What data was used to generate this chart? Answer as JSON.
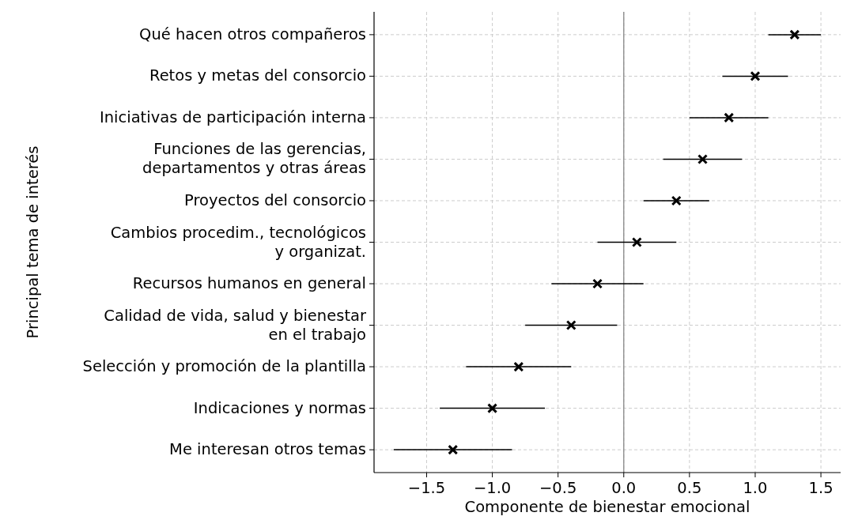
{
  "chart_data": {
    "type": "scatter",
    "orientation": "horizontal",
    "xlabel": "Componente de bienestar emocional",
    "ylabel": "Principal tema de interés",
    "categories": [
      "Qué hacen otros compañeros",
      "Retos y metas del consorcio",
      "Iniciativas de participación interna",
      "Funciones de las gerencias,\ndepartamentos y otras áreas",
      "Proyectos del consorcio",
      "Cambios procedim., tecnológicos\ny organizat.",
      "Recursos humanos en general",
      "Calidad de vida, salud y bienestar\nen el trabajo",
      "Selección y promoción de la plantilla",
      "Indicaciones y normas",
      "Me interesan otros temas"
    ],
    "values": [
      1.3,
      1.0,
      0.8,
      0.6,
      0.4,
      0.1,
      -0.2,
      -0.4,
      -0.8,
      -1.0,
      -1.3
    ],
    "errors": [
      [
        1.1,
        1.5
      ],
      [
        0.75,
        1.25
      ],
      [
        0.5,
        1.1
      ],
      [
        0.3,
        0.9
      ],
      [
        0.15,
        0.65
      ],
      [
        -0.2,
        0.4
      ],
      [
        -0.55,
        0.15
      ],
      [
        -0.75,
        -0.05
      ],
      [
        -1.2,
        -0.4
      ],
      [
        -1.4,
        -0.6
      ],
      [
        -1.75,
        -0.85
      ]
    ],
    "color": "#000000",
    "marker": "cross",
    "xlim": [
      -1.9,
      1.65
    ],
    "xticks": [
      {
        "value": -1.5,
        "label": "−1.5"
      },
      {
        "value": -1.0,
        "label": "−1.0"
      },
      {
        "value": -0.5,
        "label": "−0.5"
      },
      {
        "value": 0,
        "label": "0.0"
      },
      {
        "value": 0.5,
        "label": "0.5"
      },
      {
        "value": 1.0,
        "label": "1.0"
      },
      {
        "value": 1.5,
        "label": "1.5"
      }
    ],
    "ref_lines": [
      {
        "axis": "x",
        "value": 0,
        "color": "#888888"
      }
    ],
    "grid": true
  }
}
